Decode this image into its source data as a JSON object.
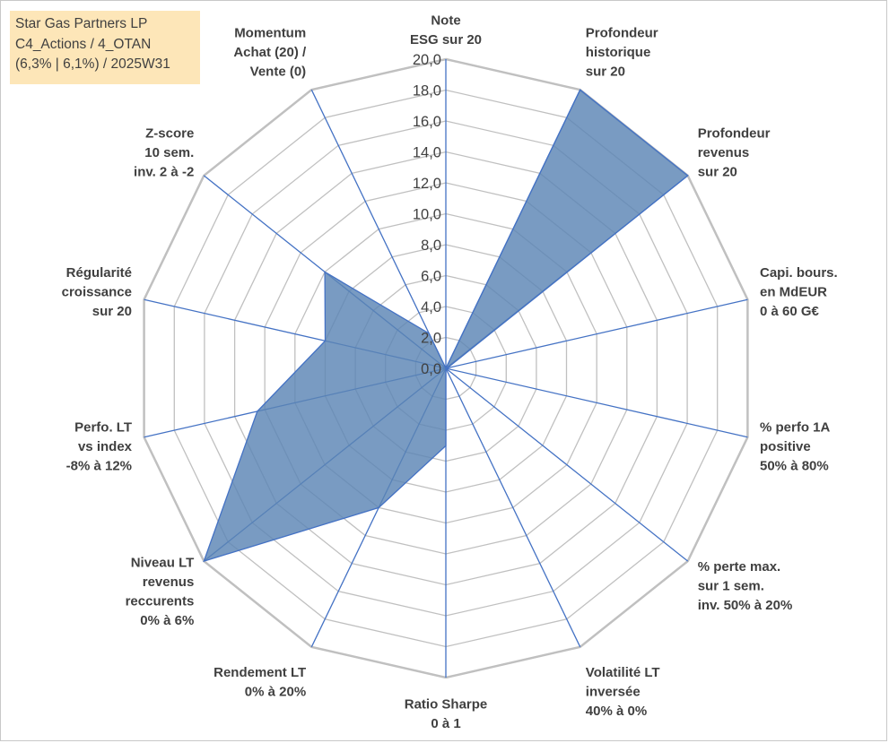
{
  "title_box": {
    "line1": "Star Gas Partners LP",
    "line2": "C4_Actions / 4_OTAN",
    "line3": "(6,3% | 6,1%) / 2025W31"
  },
  "chart_data": {
    "type": "radar",
    "rmin": 0,
    "rmax": 20,
    "tick_step": 2,
    "tick_labels": [
      "0,0",
      "2,0",
      "4,0",
      "6,0",
      "8,0",
      "10,0",
      "12,0",
      "14,0",
      "16,0",
      "18,0",
      "20,0"
    ],
    "grid": true,
    "colors": {
      "fill": "#5b85b5",
      "fill_opacity": 0.82,
      "stroke": "#4472c4",
      "grid": "#c0c0c0",
      "spoke": "#4472c4"
    },
    "axes": [
      {
        "label": [
          "Note",
          "ESG sur 20"
        ],
        "value": 0
      },
      {
        "label": [
          "Profondeur",
          "historique",
          "sur 20"
        ],
        "value": 20
      },
      {
        "label": [
          "Profondeur",
          "revenus",
          "sur 20"
        ],
        "value": 20
      },
      {
        "label": [
          "Capi. bours.",
          "en MdEUR",
          "0 à 60 G€"
        ],
        "value": 0.1
      },
      {
        "label": [
          "% perfo 1A",
          "positive",
          "50% à 80%"
        ],
        "value": 0
      },
      {
        "label": [
          "% perte max.",
          "sur 1 sem.",
          "inv. 50% à 20%"
        ],
        "value": 0
      },
      {
        "label": [
          "Volatilité LT",
          "inversée",
          "40% à 0%"
        ],
        "value": 0
      },
      {
        "label": [
          "Ratio Sharpe",
          "0 à 1"
        ],
        "value": 5
      },
      {
        "label": [
          "Rendement LT",
          "0% à 20%"
        ],
        "value": 10
      },
      {
        "label": [
          "Niveau LT",
          "revenus",
          "reccurents",
          "0% à 6%"
        ],
        "value": 20
      },
      {
        "label": [
          "Perfo. LT",
          "vs index",
          "-8% à 12%"
        ],
        "value": 12.5
      },
      {
        "label": [
          "Régularité",
          "croissance",
          "sur 20"
        ],
        "value": 8
      },
      {
        "label": [
          "Z-score",
          "10 sem.",
          "inv. 2 à -2"
        ],
        "value": 10
      },
      {
        "label": [
          "Momentum",
          "Achat (20) /",
          "Vente (0)"
        ],
        "value": 2.5
      }
    ]
  }
}
